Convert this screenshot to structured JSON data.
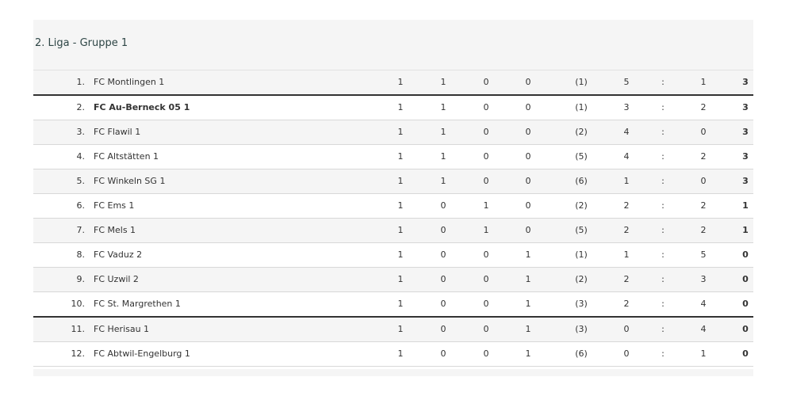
{
  "title": "2. Liga - Gruppe 1",
  "separator": ":",
  "rows": [
    {
      "rank": "1.",
      "team": "FC Montlingen 1",
      "played": "1",
      "won": "1",
      "drawn": "0",
      "lost": "0",
      "extra": "(1)",
      "gf": "5",
      "ga": "1",
      "points": "3"
    },
    {
      "rank": "2.",
      "team": "FC Au-Berneck 05 1",
      "played": "1",
      "won": "1",
      "drawn": "0",
      "lost": "0",
      "extra": "(1)",
      "gf": "3",
      "ga": "2",
      "points": "3",
      "highlighted": true
    },
    {
      "rank": "3.",
      "team": "FC Flawil 1",
      "played": "1",
      "won": "1",
      "drawn": "0",
      "lost": "0",
      "extra": "(2)",
      "gf": "4",
      "ga": "0",
      "points": "3"
    },
    {
      "rank": "4.",
      "team": "FC Altstätten 1",
      "played": "1",
      "won": "1",
      "drawn": "0",
      "lost": "0",
      "extra": "(5)",
      "gf": "4",
      "ga": "2",
      "points": "3"
    },
    {
      "rank": "5.",
      "team": "FC Winkeln SG 1",
      "played": "1",
      "won": "1",
      "drawn": "0",
      "lost": "0",
      "extra": "(6)",
      "gf": "1",
      "ga": "0",
      "points": "3"
    },
    {
      "rank": "6.",
      "team": "FC Ems 1",
      "played": "1",
      "won": "0",
      "drawn": "1",
      "lost": "0",
      "extra": "(2)",
      "gf": "2",
      "ga": "2",
      "points": "1"
    },
    {
      "rank": "7.",
      "team": "FC Mels 1",
      "played": "1",
      "won": "0",
      "drawn": "1",
      "lost": "0",
      "extra": "(5)",
      "gf": "2",
      "ga": "2",
      "points": "1"
    },
    {
      "rank": "8.",
      "team": "FC Vaduz 2",
      "played": "1",
      "won": "0",
      "drawn": "0",
      "lost": "1",
      "extra": "(1)",
      "gf": "1",
      "ga": "5",
      "points": "0"
    },
    {
      "rank": "9.",
      "team": "FC Uzwil 2",
      "played": "1",
      "won": "0",
      "drawn": "0",
      "lost": "1",
      "extra": "(2)",
      "gf": "2",
      "ga": "3",
      "points": "0"
    },
    {
      "rank": "10.",
      "team": "FC St. Margrethen 1",
      "played": "1",
      "won": "0",
      "drawn": "0",
      "lost": "1",
      "extra": "(3)",
      "gf": "2",
      "ga": "4",
      "points": "0"
    },
    {
      "rank": "11.",
      "team": "FC Herisau 1",
      "played": "1",
      "won": "0",
      "drawn": "0",
      "lost": "1",
      "extra": "(3)",
      "gf": "0",
      "ga": "4",
      "points": "0"
    },
    {
      "rank": "12.",
      "team": "FC Abtwil-Engelburg 1",
      "played": "1",
      "won": "0",
      "drawn": "0",
      "lost": "1",
      "extra": "(6)",
      "gf": "0",
      "ga": "1",
      "points": "0"
    }
  ]
}
